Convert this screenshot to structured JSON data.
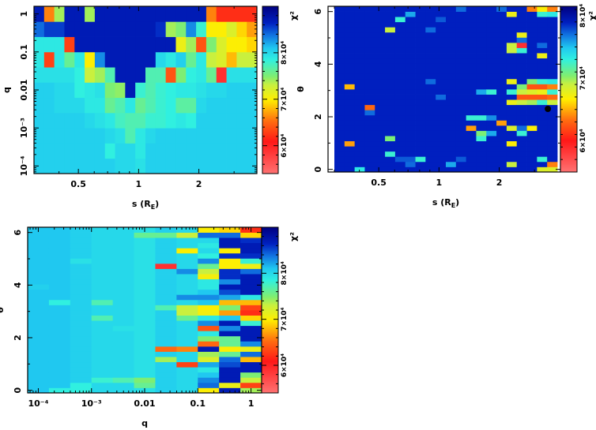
{
  "values_unit": "chi2 in units of 10^4",
  "colormap": [
    {
      "t": 0.0,
      "color": "#ff7272"
    },
    {
      "t": 0.19,
      "color": "#ff1818"
    },
    {
      "t": 0.31,
      "color": "#ff6a10"
    },
    {
      "t": 0.44,
      "color": "#ffee00"
    },
    {
      "t": 0.53,
      "color": "#c8f040"
    },
    {
      "t": 0.58,
      "color": "#80ee70"
    },
    {
      "t": 0.68,
      "color": "#30f0e0"
    },
    {
      "t": 0.75,
      "color": "#20c8f0"
    },
    {
      "t": 0.83,
      "color": "#1070e0"
    },
    {
      "t": 0.9,
      "color": "#0020c0"
    },
    {
      "t": 1.0,
      "color": "#000080"
    }
  ],
  "chart_data": [
    {
      "type": "heatmap",
      "title": "",
      "x": {
        "label_main": "s (R",
        "label_sub": "E",
        "label_close": ")",
        "scale": "log",
        "range": [
          0.3,
          3.9
        ],
        "ticks": [
          {
            "v": 0.5,
            "label": "0.5"
          },
          {
            "v": 1,
            "label": "1"
          },
          {
            "v": 2,
            "label": "2"
          }
        ]
      },
      "y": {
        "label": "q",
        "scale": "log",
        "range": [
          6.31e-05,
          1.585
        ],
        "ticks": [
          {
            "v": 0.0001,
            "label": "10⁻⁴"
          },
          {
            "v": 0.001,
            "label": "10⁻³"
          },
          {
            "v": 0.01,
            "label": "0.01"
          },
          {
            "v": 0.1,
            "label": "0.1"
          },
          {
            "v": 1,
            "label": "1"
          }
        ]
      },
      "colorbar": {
        "label": "χ²",
        "zrange": [
          5.4,
          9.0
        ],
        "ticks": [
          {
            "v": 60000,
            "label": "6×10⁴"
          },
          {
            "v": 70000,
            "label": "7×10⁴"
          },
          {
            "v": 80000,
            "label": "8×10⁴"
          }
        ]
      },
      "grid": {
        "nx": 22,
        "ny": 11,
        "order": "rows top-to-bottom",
        "rows": [
          [
            8.7,
            6.6,
            7.4,
            8.7,
            8.7,
            7.4,
            8.7,
            8.7,
            8.7,
            8.7,
            8.7,
            8.7,
            8.7,
            8.7,
            8.7,
            8.7,
            8.7,
            6.6,
            6.2,
            6.2,
            6.2,
            6.2
          ],
          [
            8.4,
            8.55,
            8.55,
            8.7,
            8.7,
            8.7,
            8.7,
            8.7,
            8.7,
            8.7,
            8.7,
            8.7,
            8.6,
            7.4,
            7.5,
            8.3,
            7.8,
            7.0,
            7.0,
            7.2,
            6.9,
            6.7
          ],
          [
            7.9,
            7.9,
            7.9,
            6.3,
            8.7,
            8.7,
            8.7,
            8.7,
            8.7,
            8.7,
            8.7,
            8.7,
            8.7,
            8.7,
            7.1,
            7.4,
            6.4,
            7.5,
            7.2,
            7.0,
            7.0,
            6.9
          ],
          [
            7.9,
            6.3,
            7.9,
            7.6,
            7.9,
            7.0,
            8.3,
            8.7,
            8.7,
            8.7,
            8.7,
            8.7,
            8.0,
            7.9,
            8.05,
            7.6,
            7.9,
            7.3,
            7.2,
            6.8,
            7.3,
            7.3
          ],
          [
            7.95,
            7.95,
            7.95,
            7.95,
            7.85,
            7.3,
            7.4,
            7.7,
            8.7,
            8.7,
            8.7,
            7.7,
            7.7,
            6.4,
            7.5,
            7.85,
            7.9,
            7.6,
            5.9,
            7.95,
            7.95,
            7.95
          ],
          [
            8.05,
            8.05,
            8.0,
            8.0,
            7.85,
            7.9,
            7.95,
            7.5,
            7.45,
            8.7,
            7.8,
            7.7,
            7.8,
            7.85,
            7.9,
            7.9,
            7.95,
            8.0,
            8.0,
            8.05,
            8.05,
            8.05
          ],
          [
            8.05,
            8.05,
            8.0,
            8.0,
            8.0,
            7.9,
            7.9,
            7.6,
            7.7,
            7.9,
            7.6,
            7.7,
            7.8,
            7.85,
            7.65,
            7.65,
            8.0,
            8.05,
            8.05,
            8.05,
            8.05,
            8.05
          ],
          [
            8.05,
            8.05,
            8.05,
            8.05,
            8.05,
            8.0,
            7.95,
            7.9,
            7.75,
            7.7,
            7.7,
            7.8,
            7.8,
            7.85,
            7.9,
            7.85,
            8.05,
            8.05,
            8.05,
            8.05,
            8.05,
            8.05
          ],
          [
            8.05,
            8.05,
            8.05,
            8.05,
            8.05,
            8.05,
            8.05,
            8.0,
            7.95,
            7.7,
            7.9,
            8.0,
            8.05,
            8.05,
            8.05,
            8.05,
            8.05,
            8.05,
            8.05,
            8.05,
            8.05,
            8.05
          ],
          [
            8.05,
            8.05,
            8.05,
            8.05,
            8.05,
            8.05,
            8.05,
            7.85,
            8.0,
            8.0,
            7.9,
            8.05,
            8.05,
            8.05,
            8.05,
            8.05,
            8.05,
            8.05,
            8.05,
            8.05,
            8.05,
            8.05
          ],
          [
            8.05,
            8.05,
            8.05,
            8.05,
            8.05,
            8.05,
            8.05,
            8.05,
            8.0,
            8.0,
            7.95,
            8.05,
            8.05,
            8.05,
            8.05,
            8.05,
            8.05,
            8.05,
            8.05,
            8.05,
            8.05,
            8.05
          ]
        ]
      }
    },
    {
      "type": "heatmap",
      "title": "",
      "x": {
        "label_main": "s (R",
        "label_sub": "E",
        "label_close": ")",
        "scale": "log",
        "range": [
          0.3,
          3.9
        ],
        "ticks": [
          {
            "v": 0.5,
            "label": "0.5"
          },
          {
            "v": 1,
            "label": "1"
          },
          {
            "v": 2,
            "label": "2"
          }
        ]
      },
      "y": {
        "label": "θ",
        "scale": "linear",
        "range": [
          -0.1,
          6.2
        ],
        "ticks": [
          {
            "v": 0,
            "label": "0"
          },
          {
            "v": 2,
            "label": "2"
          },
          {
            "v": 4,
            "label": "4"
          },
          {
            "v": 6,
            "label": "6"
          }
        ]
      },
      "colorbar": {
        "label": "χ²",
        "zrange": [
          5.5,
          8.15
        ],
        "ticks": [
          {
            "v": 60000,
            "label": "6×10⁴"
          },
          {
            "v": 70000,
            "label": "7×10⁴"
          },
          {
            "v": 80000,
            "label": "8×10⁴"
          }
        ]
      },
      "grid": {
        "nx": 22,
        "ny": 32,
        "base": 7.89,
        "order": "cells [col,row-from-bottom,value]",
        "cells": [
          [
            17,
            30,
            6.75
          ],
          [
            19,
            31,
            6.38
          ],
          [
            20,
            31,
            6.68
          ],
          [
            21,
            31,
            6.38
          ],
          [
            20,
            30,
            7.27
          ],
          [
            21,
            30,
            7.34
          ],
          [
            7,
            30,
            7.56
          ],
          [
            6,
            29,
            7.27
          ],
          [
            5,
            27,
            6.9
          ],
          [
            18,
            26,
            6.75
          ],
          [
            18,
            24,
            5.87
          ],
          [
            18,
            23,
            7.27
          ],
          [
            17,
            24,
            6.9
          ],
          [
            17,
            23,
            6.9
          ],
          [
            18,
            25,
            7.71
          ],
          [
            20,
            22,
            6.75
          ],
          [
            20,
            24,
            7.71
          ],
          [
            17,
            17,
            6.75
          ],
          [
            19,
            17,
            7.05
          ],
          [
            20,
            17,
            7.27
          ],
          [
            21,
            17,
            7.34
          ],
          [
            18,
            16,
            7.05
          ],
          [
            19,
            16,
            6.24
          ],
          [
            20,
            16,
            6.24
          ],
          [
            21,
            16,
            6.38
          ],
          [
            14,
            15,
            7.56
          ],
          [
            15,
            15,
            7.27
          ],
          [
            17,
            15,
            7.27
          ],
          [
            18,
            15,
            6.9
          ],
          [
            19,
            15,
            6.82
          ],
          [
            20,
            15,
            6.75
          ],
          [
            21,
            15,
            7.27
          ],
          [
            18,
            14,
            6.24
          ],
          [
            19,
            14,
            6.24
          ],
          [
            20,
            14,
            6.24
          ],
          [
            21,
            14,
            6.31
          ],
          [
            17,
            13,
            6.75
          ],
          [
            18,
            13,
            6.9
          ],
          [
            19,
            13,
            6.97
          ],
          [
            20,
            13,
            7.27
          ],
          [
            21,
            13,
            6.9
          ],
          [
            1,
            16,
            6.53
          ],
          [
            3,
            12,
            6.31
          ],
          [
            3,
            11,
            7.71
          ],
          [
            13,
            10,
            7.27
          ],
          [
            14,
            10,
            7.27
          ],
          [
            15,
            10,
            7.63
          ],
          [
            16,
            9,
            6.46
          ],
          [
            13,
            8,
            6.46
          ],
          [
            17,
            8,
            6.82
          ],
          [
            18,
            8,
            7.71
          ],
          [
            19,
            8,
            6.68
          ],
          [
            14,
            7,
            7.05
          ],
          [
            15,
            7,
            7.56
          ],
          [
            18,
            7,
            7.27
          ],
          [
            14,
            6,
            7.27
          ],
          [
            17,
            5,
            6.68
          ],
          [
            1,
            5,
            6.46
          ],
          [
            5,
            6,
            7.05
          ],
          [
            5,
            3,
            7.27
          ],
          [
            8,
            2,
            7.27
          ],
          [
            20,
            2,
            7.27
          ],
          [
            17,
            1,
            6.9
          ],
          [
            21,
            1,
            6.38
          ],
          [
            2,
            0,
            7.34
          ],
          [
            20,
            0,
            6.82
          ],
          [
            21,
            0,
            6.82
          ],
          [
            9,
            27,
            7.71
          ],
          [
            7,
            1,
            7.71
          ],
          [
            11,
            1,
            7.56
          ],
          [
            9,
            17,
            7.71
          ],
          [
            10,
            14,
            7.71
          ],
          [
            12,
            31,
            7.71
          ],
          [
            16,
            31,
            7.71
          ],
          [
            6,
            2,
            7.75
          ],
          [
            7,
            2,
            7.75
          ],
          [
            10,
            29,
            7.75
          ],
          [
            12,
            2,
            7.75
          ]
        ]
      },
      "marker": {
        "x": 3.5,
        "y": 2.3,
        "color": "#000000"
      }
    },
    {
      "type": "heatmap",
      "title": "",
      "x": {
        "label": "q",
        "scale": "log",
        "range": [
          6.31e-05,
          1.585
        ],
        "ticks": [
          {
            "v": 0.0001,
            "label": "10⁻⁴"
          },
          {
            "v": 0.001,
            "label": "10⁻³"
          },
          {
            "v": 0.01,
            "label": "0.01"
          },
          {
            "v": 0.1,
            "label": "0.1"
          },
          {
            "v": 1,
            "label": "1"
          }
        ]
      },
      "y": {
        "label": "θ",
        "scale": "linear",
        "range": [
          -0.1,
          6.2
        ],
        "ticks": [
          {
            "v": 0,
            "label": "0"
          },
          {
            "v": 2,
            "label": "2"
          },
          {
            "v": 4,
            "label": "4"
          },
          {
            "v": 6,
            "label": "6"
          }
        ]
      },
      "colorbar": {
        "label": "χ²",
        "zrange": [
          5.4,
          9.0
        ],
        "ticks": [
          {
            "v": 60000,
            "label": "6×10⁴"
          },
          {
            "v": 70000,
            "label": "7×10⁴"
          },
          {
            "v": 80000,
            "label": "8×10⁴"
          }
        ]
      },
      "grid": {
        "nx": 11,
        "ny": 32,
        "order": "column_base for cols 0-7 plus cells; full columns 8-10 top-to-bottom",
        "column_base": [
          8.1,
          8.1,
          8.05,
          8.0,
          8.0,
          7.95,
          8.05,
          8.0
        ],
        "cells": [
          [
            6,
            24,
            5.9
          ],
          [
            6,
            8,
            6.5
          ],
          [
            6,
            6,
            7.4
          ],
          [
            6,
            16,
            7.7
          ],
          [
            6,
            30,
            7.6
          ],
          [
            7,
            27,
            7.0
          ],
          [
            7,
            16,
            7.3
          ],
          [
            7,
            15,
            7.3
          ],
          [
            7,
            14,
            7.6
          ],
          [
            7,
            18,
            8.3
          ],
          [
            7,
            8,
            6.6
          ],
          [
            7,
            5,
            6.3
          ],
          [
            7,
            30,
            7.3
          ],
          [
            7,
            23,
            8.3
          ],
          [
            5,
            30,
            7.6
          ],
          [
            5,
            2,
            7.5
          ],
          [
            5,
            1,
            7.6
          ],
          [
            3,
            17,
            7.7
          ],
          [
            3,
            14,
            7.7
          ],
          [
            3,
            2,
            7.8
          ],
          [
            2,
            1,
            7.85
          ],
          [
            2,
            0,
            7.85
          ],
          [
            1,
            0,
            7.85
          ],
          [
            1,
            17,
            7.85
          ],
          [
            4,
            2,
            7.7
          ],
          [
            0,
            20,
            8.05
          ],
          [
            2,
            25,
            7.95
          ],
          [
            4,
            12,
            7.95
          ]
        ],
        "full_columns": {
          "8": [
            7.0,
            8.4,
            8.0,
            7.9,
            8.0,
            7.85,
            8.3,
            7.6,
            7.3,
            7.05,
            7.9,
            7.9,
            8.1,
            8.3,
            8.1,
            7.0,
            7.05,
            7.9,
            8.3,
            6.4,
            7.9,
            7.5,
            6.5,
            8.7,
            7.4,
            7.2,
            8.2,
            7.9,
            8.1,
            8.3,
            8.4,
            7.0
          ],
          "9": [
            6.9,
            8.4,
            8.7,
            8.7,
            7.0,
            8.6,
            7.0,
            7.0,
            8.6,
            8.6,
            8.3,
            8.7,
            8.5,
            8.2,
            6.8,
            7.5,
            6.7,
            8.1,
            8.7,
            8.3,
            8.7,
            7.6,
            7.6,
            7.0,
            7.6,
            8.4,
            8.5,
            8.7,
            8.7,
            8.7,
            7.1,
            8.7
          ],
          "10": [
            6.2,
            6.9,
            8.6,
            8.7,
            8.7,
            8.6,
            7.8,
            7.1,
            8.4,
            8.7,
            8.7,
            8.7,
            8.7,
            7.9,
            6.8,
            6.3,
            6.2,
            6.9,
            7.8,
            8.7,
            8.7,
            8.7,
            8.3,
            7.1,
            8.4,
            6.8,
            8.7,
            8.7,
            7.5,
            7.3,
            6.3,
            7.4
          ]
        }
      }
    }
  ]
}
